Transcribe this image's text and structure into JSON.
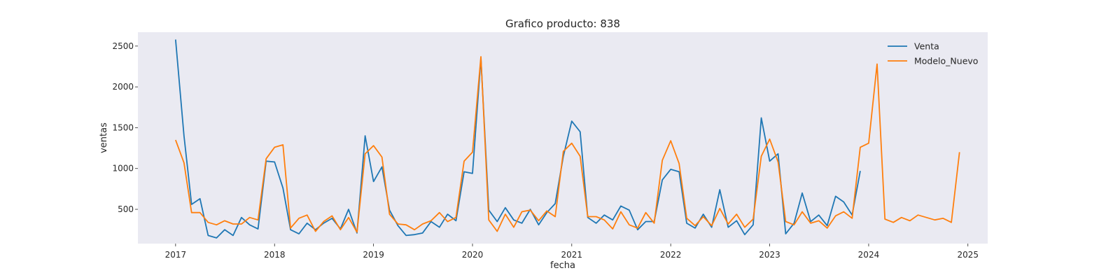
{
  "chart_data": {
    "type": "line",
    "title": "Grafico producto: 838",
    "xlabel": "fecha",
    "ylabel": "ventas",
    "xlim": [
      "2016-08-15",
      "2025-03-15"
    ],
    "ylim": [
      80,
      2670
    ],
    "x_ticks": [
      "2017",
      "2018",
      "2019",
      "2020",
      "2021",
      "2022",
      "2023",
      "2024",
      "2025"
    ],
    "y_ticks": [
      500,
      1000,
      1500,
      2000,
      2500
    ],
    "grid": false,
    "legend_position": "top-right",
    "background": "#eaeaf2",
    "series": [
      {
        "name": "Venta",
        "color": "#1f77b4",
        "start": "2017-01",
        "values": [
          2580,
          1400,
          560,
          630,
          180,
          150,
          250,
          180,
          400,
          310,
          260,
          1090,
          1080,
          760,
          250,
          200,
          330,
          250,
          330,
          390,
          260,
          500,
          210,
          1400,
          840,
          1020,
          490,
          300,
          180,
          190,
          210,
          350,
          280,
          440,
          360,
          960,
          940,
          2350,
          490,
          350,
          520,
          370,
          330,
          500,
          310,
          460,
          570,
          1150,
          1580,
          1450,
          400,
          330,
          430,
          370,
          540,
          490,
          250,
          350,
          350,
          860,
          990,
          960,
          330,
          270,
          440,
          280,
          740,
          280,
          360,
          190,
          310,
          1620,
          1090,
          1180,
          200,
          330,
          700,
          350,
          430,
          300,
          660,
          590,
          430,
          970
        ]
      },
      {
        "name": "Modelo_Nuevo",
        "color": "#ff7f0e",
        "start": "2017-01",
        "values": [
          1350,
          1070,
          460,
          460,
          340,
          310,
          360,
          320,
          320,
          400,
          370,
          1120,
          1260,
          1290,
          270,
          390,
          430,
          230,
          350,
          420,
          250,
          400,
          220,
          1180,
          1280,
          1140,
          440,
          320,
          310,
          250,
          320,
          360,
          460,
          350,
          400,
          1090,
          1200,
          2370,
          370,
          230,
          440,
          280,
          470,
          490,
          360,
          480,
          410,
          1210,
          1310,
          1150,
          410,
          410,
          370,
          260,
          470,
          310,
          270,
          460,
          330,
          1100,
          1340,
          1060,
          390,
          300,
          410,
          300,
          510,
          320,
          440,
          280,
          380,
          1150,
          1360,
          1080,
          350,
          310,
          470,
          330,
          360,
          270,
          420,
          470,
          390,
          1260,
          1310,
          2280,
          380,
          340,
          400,
          360,
          430,
          400,
          370,
          390,
          340,
          1200
        ]
      }
    ]
  }
}
